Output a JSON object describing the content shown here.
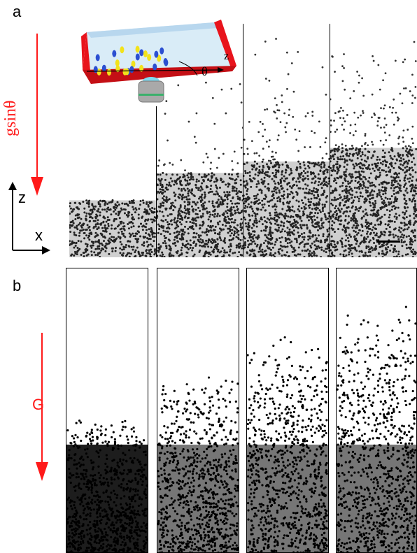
{
  "panel_a": {
    "label": "a",
    "gravity_label": "gsinθ",
    "axis_z": "z",
    "axis_x": "x",
    "inset_z": "z",
    "inset_theta": "θ",
    "colors": {
      "arrow": "#ff1a1a",
      "cell_red": "#e8141c"
    }
  },
  "panel_b": {
    "label": "b",
    "gravity_label": "G",
    "colors": {
      "arrow": "#ff1a1a"
    }
  },
  "panels_a": [
    {
      "level": 0.25
    },
    {
      "level": 0.37
    },
    {
      "level": 0.42
    },
    {
      "level": 0.48
    }
  ],
  "panels_b": [
    {
      "level": 0.48
    },
    {
      "level": 0.63
    },
    {
      "level": 0.77
    },
    {
      "level": 0.87
    }
  ]
}
